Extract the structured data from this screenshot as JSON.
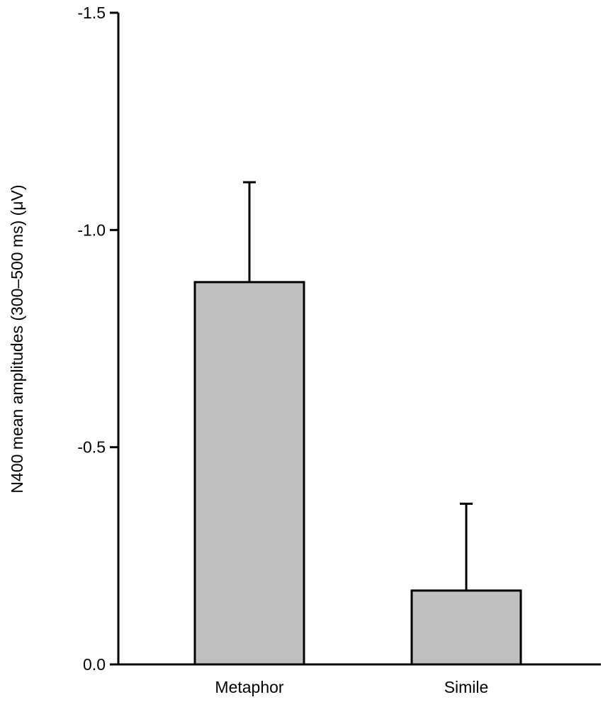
{
  "chart_data": {
    "type": "bar",
    "title": "",
    "xlabel": "",
    "ylabel": "N400 mean amplitudes (300–500 ms) (μV)",
    "categories": [
      "Metaphor",
      "Simile"
    ],
    "values": [
      -0.88,
      -0.17
    ],
    "error_upper": [
      -1.11,
      -0.37
    ],
    "ylim": [
      0.0,
      -1.5
    ],
    "y_axis_inverted": true,
    "yticks": [
      0.0,
      -0.5,
      -1.0,
      -1.5
    ],
    "ytick_labels": [
      "0.0",
      "-0.5",
      "-1.0",
      "-1.5"
    ],
    "bar_color": "#c0c0c0",
    "edge_color": "#000000",
    "grid": false,
    "legend": "none"
  }
}
